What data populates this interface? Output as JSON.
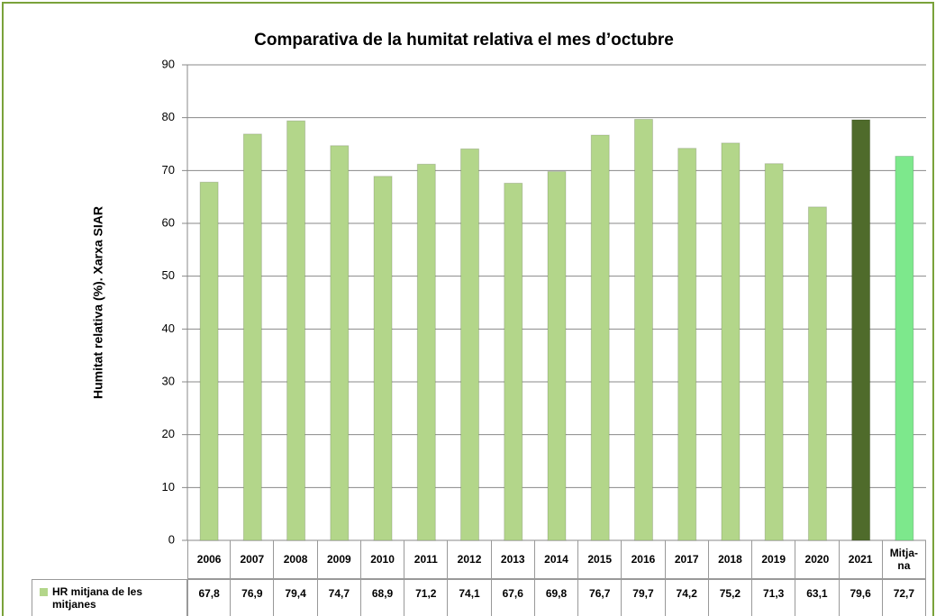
{
  "chart_data": {
    "type": "bar",
    "title": "Comparativa de la humitat relativa el mes d’octubre",
    "y_label": "Humitat relativa (%). Xarxa SIAR",
    "categories": [
      "2006",
      "2007",
      "2008",
      "2009",
      "2010",
      "2011",
      "2012",
      "2013",
      "2014",
      "2015",
      "2016",
      "2017",
      "2018",
      "2019",
      "2020",
      "2021",
      "Mitja-na"
    ],
    "series": [
      {
        "name": "HR mitjana de les mitjanes",
        "color": "#b3d68a",
        "colors": [
          "#b3d68a",
          "#b3d68a",
          "#b3d68a",
          "#b3d68a",
          "#b3d68a",
          "#b3d68a",
          "#b3d68a",
          "#b3d68a",
          "#b3d68a",
          "#b3d68a",
          "#b3d68a",
          "#b3d68a",
          "#b3d68a",
          "#b3d68a",
          "#b3d68a",
          "#4f6b2b",
          "#7de88c"
        ],
        "values": [
          67.8,
          76.9,
          79.4,
          74.7,
          68.9,
          71.2,
          74.1,
          67.6,
          69.8,
          76.7,
          79.7,
          74.2,
          75.2,
          71.3,
          63.1,
          79.6,
          72.7
        ],
        "value_labels": [
          "67,8",
          "76,9",
          "79,4",
          "74,7",
          "68,9",
          "71,2",
          "74,1",
          "67,6",
          "69,8",
          "76,7",
          "79,7",
          "74,2",
          "75,2",
          "71,3",
          "63,1",
          "79,6",
          "72,7"
        ]
      }
    ],
    "ylim": [
      0,
      90
    ],
    "yticks": [
      0,
      10,
      20,
      30,
      40,
      50,
      60,
      70,
      80,
      90
    ],
    "grid": true
  }
}
